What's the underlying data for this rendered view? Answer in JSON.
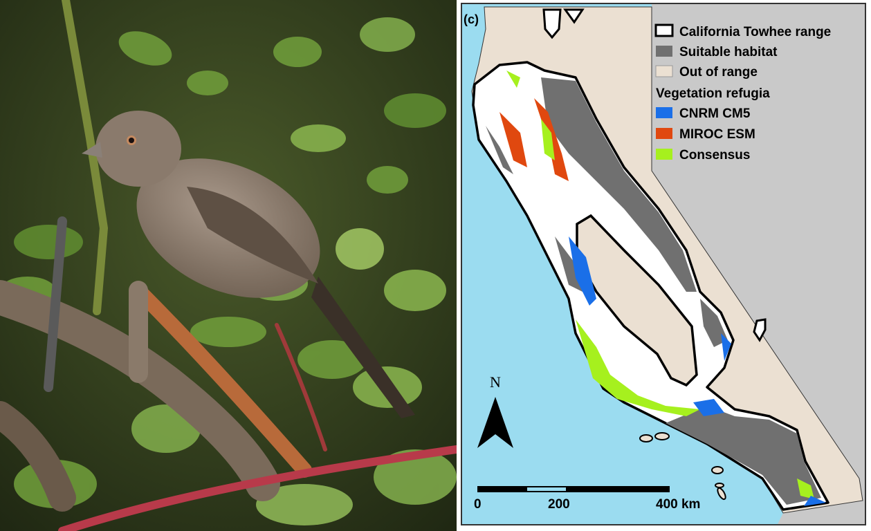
{
  "figure": {
    "panel_label": "(c)",
    "legend": {
      "items": [
        {
          "label": "California Towhee range",
          "symbol": "outline",
          "color": "#000000"
        },
        {
          "label": "Suitable habitat",
          "symbol": "fill",
          "color": "#707070"
        },
        {
          "label": "Out of range",
          "symbol": "fill",
          "color": "#ebe0d2"
        }
      ],
      "group_title": "Vegetation refugia",
      "refugia": [
        {
          "label": "CNRM CM5",
          "color": "#1a6fe8"
        },
        {
          "label": "MIROC ESM",
          "color": "#e0480f"
        },
        {
          "label": "Consensus",
          "color": "#a6f01e"
        }
      ]
    },
    "north_arrow": "N",
    "scale_bar": {
      "labels": [
        "0",
        "200",
        "400 km"
      ]
    },
    "colors": {
      "ocean": "#9bdcf0",
      "outside_state": "#c9c9c9",
      "range_fill": "#ffffff"
    }
  }
}
